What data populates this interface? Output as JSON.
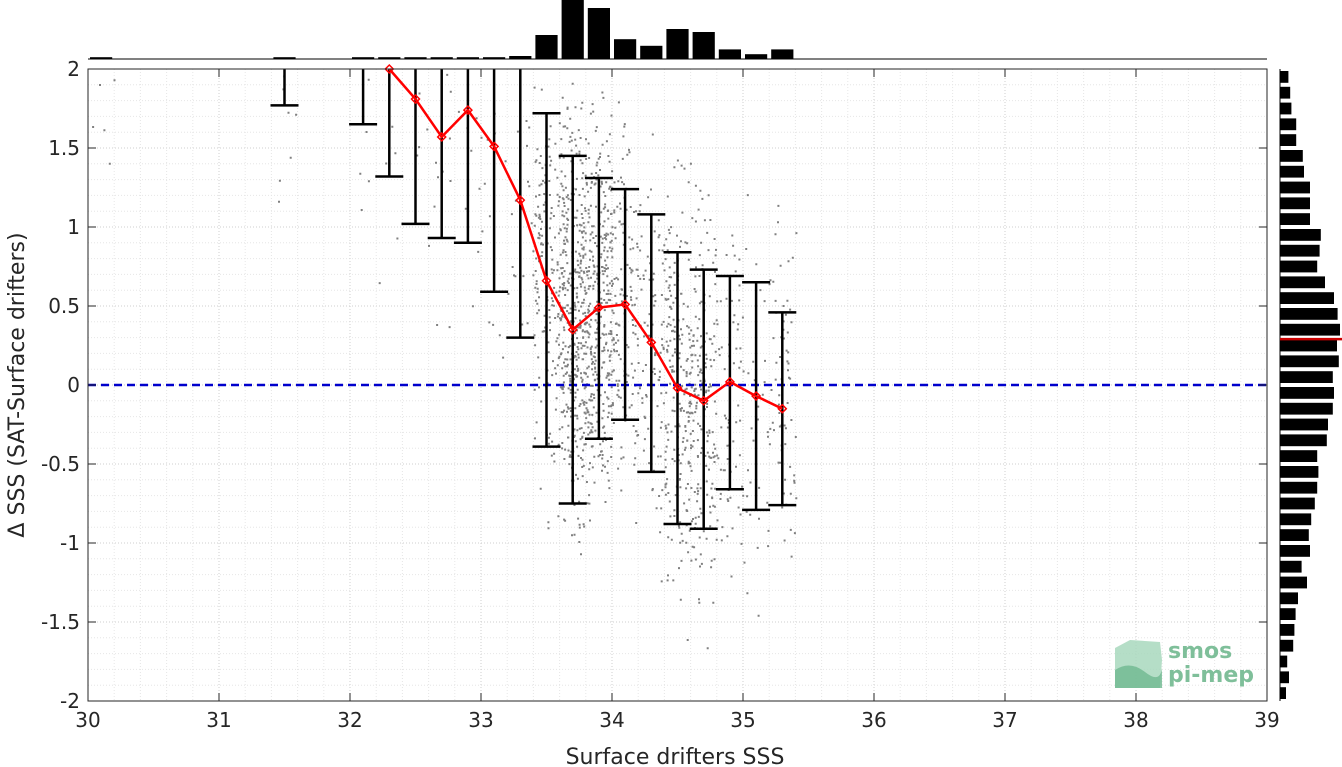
{
  "chart_data": {
    "type": "scatter",
    "xlabel": "Surface drifters SSS",
    "ylabel": "Δ SSS (SAT-Surface drifters)",
    "xlim": [
      30,
      39
    ],
    "ylim": [
      -2,
      2
    ],
    "x_ticks": [
      "30",
      "31",
      "32",
      "33",
      "34",
      "35",
      "36",
      "37",
      "38",
      "39"
    ],
    "y_ticks": [
      "2",
      "1.5",
      "1",
      "0.5",
      "0",
      "-0.5",
      "-1",
      "-1.5",
      "-2"
    ],
    "grid": "dotted, major and minor",
    "zero_line": {
      "y": 0,
      "style": "dashed",
      "color": "#0000cc"
    },
    "scatter_color": "#808080",
    "mean_series": {
      "color": "#ff0000",
      "marker": "diamond",
      "x": [
        32.3,
        32.5,
        32.7,
        32.9,
        33.1,
        33.3,
        33.5,
        33.7,
        33.9,
        34.1,
        34.3,
        34.5,
        34.7,
        34.9,
        35.1,
        35.3
      ],
      "y": [
        2.0,
        1.81,
        1.57,
        1.74,
        1.51,
        1.17,
        0.66,
        0.35,
        0.49,
        0.51,
        0.27,
        -0.02,
        -0.1,
        0.02,
        -0.07,
        -0.15
      ]
    },
    "error_bars": [
      {
        "x": 31.5,
        "low": 1.77,
        "high": 2.0
      },
      {
        "x": 32.1,
        "low": 1.65,
        "high": 2.0
      },
      {
        "x": 32.3,
        "low": 1.32,
        "high": 2.0
      },
      {
        "x": 32.5,
        "low": 1.02,
        "high": 2.0
      },
      {
        "x": 32.7,
        "low": 0.93,
        "high": 2.0
      },
      {
        "x": 32.9,
        "low": 0.9,
        "high": 2.0
      },
      {
        "x": 33.1,
        "low": 0.59,
        "high": 2.0
      },
      {
        "x": 33.3,
        "low": 0.3,
        "high": 2.0
      },
      {
        "x": 33.5,
        "low": -0.39,
        "high": 1.72
      },
      {
        "x": 33.7,
        "low": -0.75,
        "high": 1.45
      },
      {
        "x": 33.9,
        "low": -0.34,
        "high": 1.31
      },
      {
        "x": 34.1,
        "low": -0.22,
        "high": 1.24
      },
      {
        "x": 34.3,
        "low": -0.55,
        "high": 1.08
      },
      {
        "x": 34.5,
        "low": -0.88,
        "high": 0.84
      },
      {
        "x": 34.7,
        "low": -0.91,
        "high": 0.73
      },
      {
        "x": 34.9,
        "low": -0.66,
        "high": 0.69
      },
      {
        "x": 35.1,
        "low": -0.79,
        "high": 0.65
      },
      {
        "x": 35.3,
        "low": -0.76,
        "high": 0.46
      }
    ],
    "top_histogram": {
      "color": "#000000",
      "x_centers": [
        30.1,
        31.5,
        32.1,
        32.3,
        32.5,
        32.7,
        32.9,
        33.1,
        33.3,
        33.5,
        33.7,
        33.9,
        34.1,
        34.3,
        34.5,
        34.7,
        34.9,
        35.1,
        35.3
      ],
      "relative_heights": [
        0.03,
        0.03,
        0.03,
        0.03,
        0.03,
        0.03,
        0.03,
        0.03,
        0.05,
        0.4,
        1.0,
        0.85,
        0.33,
        0.22,
        0.5,
        0.45,
        0.16,
        0.08,
        0.16
      ]
    },
    "right_histogram": {
      "color": "#000000",
      "y_centers": [
        1.95,
        1.85,
        1.75,
        1.65,
        1.55,
        1.45,
        1.35,
        1.25,
        1.15,
        1.05,
        0.95,
        0.85,
        0.75,
        0.65,
        0.55,
        0.45,
        0.35,
        0.25,
        0.15,
        0.05,
        -0.05,
        -0.15,
        -0.25,
        -0.35,
        -0.45,
        -0.55,
        -0.65,
        -0.75,
        -0.85,
        -0.95,
        -1.05,
        -1.15,
        -1.25,
        -1.35,
        -1.45,
        -1.55,
        -1.65,
        -1.75,
        -1.85,
        -1.95
      ],
      "relative_lengths": [
        0.14,
        0.17,
        0.19,
        0.27,
        0.27,
        0.38,
        0.4,
        0.5,
        0.5,
        0.5,
        0.68,
        0.66,
        0.62,
        0.75,
        0.9,
        0.96,
        1.0,
        0.95,
        0.98,
        0.88,
        0.9,
        0.88,
        0.8,
        0.78,
        0.62,
        0.64,
        0.62,
        0.58,
        0.52,
        0.48,
        0.5,
        0.36,
        0.45,
        0.3,
        0.26,
        0.24,
        0.22,
        0.12,
        0.15,
        0.1
      ],
      "mean_marker": {
        "y": 0.29,
        "color": "#cc0000"
      }
    }
  },
  "logo": {
    "line1": "smos",
    "line2": "pi-mep"
  }
}
